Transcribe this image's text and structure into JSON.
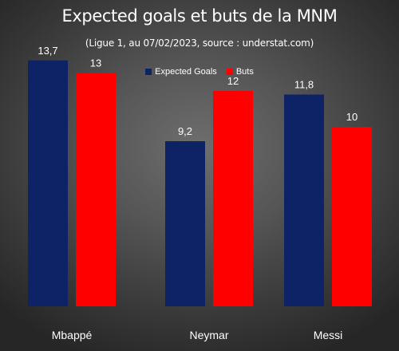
{
  "chart_data": {
    "type": "bar",
    "title": "Expected goals et buts de la MNM",
    "subtitle": "(Ligue 1, au 07/02/2023, source : understat.com)",
    "categories": [
      "Mbappé",
      "Neymar",
      "Messi"
    ],
    "series": [
      {
        "name": "Expected Goals",
        "color": "#0d2366",
        "values": [
          13.7,
          9.2,
          11.8
        ],
        "labels": [
          "13,7",
          "9,2",
          "11,8"
        ]
      },
      {
        "name": "Buts",
        "color": "#ff0000",
        "values": [
          13,
          12,
          10
        ],
        "labels": [
          "13",
          "12",
          "10"
        ]
      }
    ],
    "ylim": [
      0,
      15
    ],
    "grid": false,
    "legend_position": "top"
  }
}
